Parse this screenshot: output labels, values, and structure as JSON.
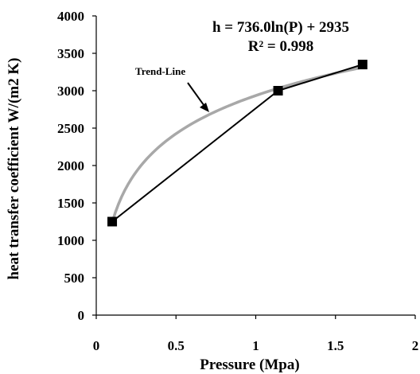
{
  "chart_data": {
    "type": "line",
    "xlabel": "Pressure (Mpa)",
    "ylabel": "heat  transfer  coefficient   W/(m2 K)",
    "xlim": [
      0,
      2
    ],
    "ylim": [
      0,
      4000
    ],
    "x_ticks": [
      0,
      0.5,
      1,
      1.5,
      2
    ],
    "x_tick_labels": [
      "0",
      "0.5",
      "1",
      "1.5",
      "2"
    ],
    "y_ticks": [
      0,
      500,
      1000,
      1500,
      2000,
      2500,
      3000,
      3500,
      4000
    ],
    "y_tick_labels": [
      "0",
      "500",
      "1000",
      "1500",
      "2000",
      "2500",
      "3000",
      "3500",
      "4000"
    ],
    "series": [
      {
        "x": [
          0.1,
          1.14,
          1.67
        ],
        "y": [
          1250,
          3000,
          3350
        ],
        "color": "#000000",
        "marker": "square"
      }
    ],
    "trendline": {
      "label": "Trend-Line",
      "equation": "h = 736.0ln(P) + 2935",
      "r_squared": "R² = 0.998",
      "color": "#a8a8a8",
      "function": "log",
      "coefficient": 736.0,
      "intercept": 2935,
      "x_range": [
        0.1,
        1.67
      ]
    },
    "grid": false
  }
}
